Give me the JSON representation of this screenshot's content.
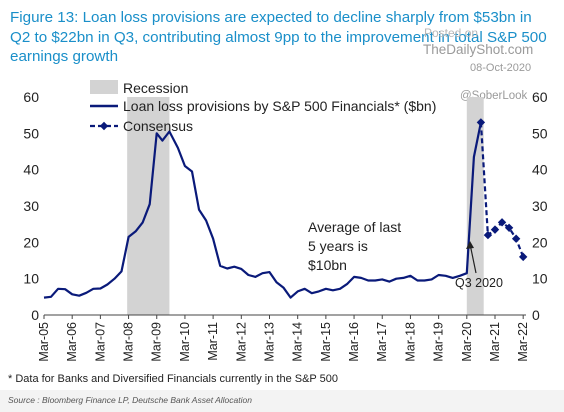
{
  "watermark": {
    "posted_on": "Posted on",
    "site": "TheDailyShot.com",
    "date": "08-Oct-2020",
    "handle": "@SoberLook"
  },
  "chart_data": {
    "type": "line",
    "title": "Figure 13: Loan loss provisions are expected to decline sharply from $53bn in Q2 to $22bn in Q3, contributing almost 9pp to the improvement in total S&P 500 earnings growth",
    "footnote": "* Data for Banks and Diversified Financials currently in the S&P 500",
    "source": "Source : Bloomberg Finance LP, Deutsche Bank Asset Allocation",
    "x_ticks": [
      "Mar-05",
      "Mar-06",
      "Mar-07",
      "Mar-08",
      "Mar-09",
      "Mar-10",
      "Mar-11",
      "Mar-12",
      "Mar-13",
      "Mar-14",
      "Mar-15",
      "Mar-16",
      "Mar-17",
      "Mar-18",
      "Mar-19",
      "Mar-20",
      "Mar-21",
      "Mar-22"
    ],
    "x_range": [
      2005.0,
      2022.1
    ],
    "ylim": [
      0,
      60
    ],
    "y_ticks_left": [
      "0",
      "10",
      "20",
      "30",
      "40",
      "50",
      "60"
    ],
    "y_ticks_right": [
      "0",
      "10",
      "20",
      "30",
      "40",
      "50",
      "60"
    ],
    "recessions": [
      {
        "name": "Recession",
        "start": 2007.95,
        "end": 2009.45
      },
      {
        "name": "Recession",
        "start": 2020.0,
        "end": 2020.6
      }
    ],
    "legend": {
      "position": "top-center",
      "items": [
        {
          "label": "Recession",
          "kind": "shade",
          "color": "#d3d3d3"
        },
        {
          "label": "Loan loss provisions by S&P 500 Financials* ($bn)",
          "kind": "line",
          "color": "#0a1a7a"
        },
        {
          "label": "Consensus",
          "kind": "dashed-diamond",
          "color": "#0a1a7a"
        }
      ]
    },
    "series": [
      {
        "name": "Loan loss provisions by S&P 500 Financials* ($bn)",
        "style": "solid",
        "color": "#0a1a7a",
        "points": [
          [
            2005.0,
            4.8
          ],
          [
            2005.25,
            5.0
          ],
          [
            2005.5,
            7.2
          ],
          [
            2005.75,
            7.1
          ],
          [
            2006.0,
            5.7
          ],
          [
            2006.25,
            5.3
          ],
          [
            2006.5,
            6.1
          ],
          [
            2006.75,
            7.2
          ],
          [
            2007.0,
            7.3
          ],
          [
            2007.25,
            8.4
          ],
          [
            2007.5,
            10.0
          ],
          [
            2007.75,
            12.0
          ],
          [
            2008.0,
            21.5
          ],
          [
            2008.25,
            23.0
          ],
          [
            2008.5,
            25.5
          ],
          [
            2008.75,
            30.5
          ],
          [
            2009.0,
            50.0
          ],
          [
            2009.2,
            48.0
          ],
          [
            2009.45,
            50.5
          ],
          [
            2009.75,
            46.0
          ],
          [
            2010.0,
            41.0
          ],
          [
            2010.25,
            39.5
          ],
          [
            2010.5,
            29.0
          ],
          [
            2010.75,
            26.0
          ],
          [
            2011.0,
            21.0
          ],
          [
            2011.25,
            13.5
          ],
          [
            2011.5,
            12.8
          ],
          [
            2011.75,
            13.3
          ],
          [
            2012.0,
            12.7
          ],
          [
            2012.25,
            11.0
          ],
          [
            2012.5,
            10.5
          ],
          [
            2012.75,
            11.5
          ],
          [
            2013.0,
            11.8
          ],
          [
            2013.25,
            9.0
          ],
          [
            2013.5,
            7.5
          ],
          [
            2013.75,
            4.8
          ],
          [
            2014.0,
            6.5
          ],
          [
            2014.25,
            7.2
          ],
          [
            2014.5,
            6.0
          ],
          [
            2014.75,
            6.5
          ],
          [
            2015.0,
            7.2
          ],
          [
            2015.25,
            6.8
          ],
          [
            2015.5,
            7.2
          ],
          [
            2015.75,
            8.5
          ],
          [
            2016.0,
            10.5
          ],
          [
            2016.25,
            10.2
          ],
          [
            2016.5,
            9.5
          ],
          [
            2016.75,
            9.5
          ],
          [
            2017.0,
            9.8
          ],
          [
            2017.25,
            9.2
          ],
          [
            2017.5,
            10.0
          ],
          [
            2017.75,
            10.2
          ],
          [
            2018.0,
            10.8
          ],
          [
            2018.25,
            9.5
          ],
          [
            2018.5,
            9.5
          ],
          [
            2018.75,
            9.8
          ],
          [
            2019.0,
            11.0
          ],
          [
            2019.25,
            10.8
          ],
          [
            2019.5,
            10.2
          ],
          [
            2019.75,
            10.8
          ],
          [
            2020.0,
            11.5
          ],
          [
            2020.25,
            43.5
          ],
          [
            2020.5,
            53.0
          ]
        ]
      },
      {
        "name": "Consensus",
        "style": "dashed",
        "marker": "diamond",
        "color": "#0a1a7a",
        "points": [
          [
            2020.5,
            53.0
          ],
          [
            2020.75,
            22.0
          ],
          [
            2021.0,
            23.5
          ],
          [
            2021.25,
            25.5
          ],
          [
            2021.5,
            24.0
          ],
          [
            2021.75,
            21.0
          ],
          [
            2022.0,
            16.0
          ]
        ]
      }
    ],
    "annotations": [
      {
        "id": "average",
        "lines": [
          "Average of last",
          "5 years is",
          "$10bn"
        ]
      },
      {
        "id": "q3",
        "text": "Q3 2020"
      }
    ]
  }
}
